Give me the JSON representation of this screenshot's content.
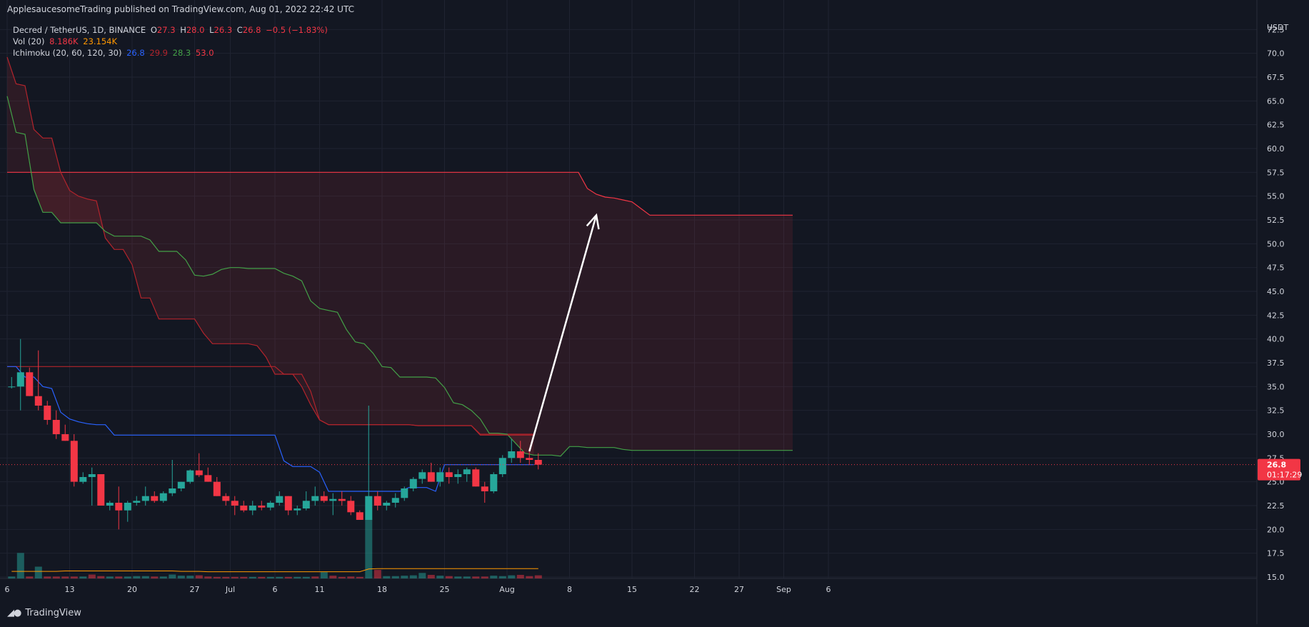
{
  "header": {
    "published": "ApplesaucesomeTrading published on TradingView.com, Aug 01, 2022 22:42 UTC"
  },
  "legend": {
    "symbol": "Decred / TetherUS, 1D, BINANCE",
    "o_label": "O",
    "o_value": "27.3",
    "h_label": "H",
    "h_value": "28.0",
    "l_label": "L",
    "l_value": "26.3",
    "c_label": "C",
    "c_value": "26.8",
    "change": "−0.5 (−1.83%)",
    "vol_label": "Vol (20)",
    "vol_value": "8.186K",
    "vol_ma": "23.154K",
    "ichimoku_label": "Ichimoku (20, 60, 120, 30)",
    "ichi_conv": "26.8",
    "ichi_base": "29.9",
    "ichi_spanA": "28.3",
    "ichi_spanB": "53.0"
  },
  "price_tag": {
    "value": "26.8",
    "countdown": "01:17:29"
  },
  "footer": {
    "brand": "TradingView"
  },
  "colors": {
    "background": "#131722",
    "grid": "#1f2331",
    "up": "#26a69a",
    "down": "#f23645",
    "conversion": "#2962ff",
    "base": "#b2242c",
    "spanA": "#43a047",
    "spanB": "#f23645",
    "cloud_bear": "#f23645",
    "text": "#d1d4dc",
    "arrow": "#ffffff"
  },
  "chart_data": {
    "type": "candlestick",
    "title": "Decred / TetherUS, 1D, BINANCE",
    "y_axis_unit": "USDT",
    "ylim": [
      15,
      75
    ],
    "y_ticks": [
      "72.5",
      "70.0",
      "67.5",
      "65.0",
      "62.5",
      "60.0",
      "57.5",
      "55.0",
      "52.5",
      "50.0",
      "47.5",
      "45.0",
      "42.5",
      "40.0",
      "37.5",
      "35.0",
      "32.5",
      "30.0",
      "27.5",
      "25.0",
      "22.5",
      "20.0",
      "17.5",
      "15.0"
    ],
    "x_ticks": [
      {
        "label": "6",
        "day": 0
      },
      {
        "label": "13",
        "day": 7
      },
      {
        "label": "20",
        "day": 14
      },
      {
        "label": "27",
        "day": 21
      },
      {
        "label": "Jul",
        "day": 25
      },
      {
        "label": "6",
        "day": 30
      },
      {
        "label": "11",
        "day": 35
      },
      {
        "label": "18",
        "day": 42
      },
      {
        "label": "25",
        "day": 49
      },
      {
        "label": "Aug",
        "day": 56
      },
      {
        "label": "8",
        "day": 63
      },
      {
        "label": "15",
        "day": 70
      },
      {
        "label": "22",
        "day": 77
      },
      {
        "label": "27",
        "day": 82
      },
      {
        "label": "Sep",
        "day": 87
      },
      {
        "label": "6",
        "day": 92
      }
    ],
    "x_start": "2022-06-06",
    "grid": true,
    "candles": [
      {
        "o": 35.0,
        "h": 36.0,
        "l": 34.8,
        "c": 35.0
      },
      {
        "o": 35.0,
        "h": 40.0,
        "l": 32.5,
        "c": 36.5
      },
      {
        "o": 36.5,
        "h": 37.0,
        "l": 34.0,
        "c": 34.0
      },
      {
        "o": 34.0,
        "h": 38.8,
        "l": 32.5,
        "c": 33.0
      },
      {
        "o": 33.0,
        "h": 33.5,
        "l": 31.0,
        "c": 31.5
      },
      {
        "o": 31.5,
        "h": 32.5,
        "l": 29.5,
        "c": 30.0
      },
      {
        "o": 30.0,
        "h": 31.0,
        "l": 29.3,
        "c": 29.3
      },
      {
        "o": 29.3,
        "h": 30.0,
        "l": 24.5,
        "c": 25.0
      },
      {
        "o": 25.0,
        "h": 26.0,
        "l": 24.8,
        "c": 25.5
      },
      {
        "o": 25.5,
        "h": 26.5,
        "l": 22.5,
        "c": 25.8
      },
      {
        "o": 25.8,
        "h": 25.8,
        "l": 22.5,
        "c": 22.5
      },
      {
        "o": 22.5,
        "h": 23.0,
        "l": 22.0,
        "c": 22.8
      },
      {
        "o": 22.8,
        "h": 24.5,
        "l": 20.0,
        "c": 22.0
      },
      {
        "o": 22.0,
        "h": 23.0,
        "l": 20.8,
        "c": 22.8
      },
      {
        "o": 22.8,
        "h": 23.5,
        "l": 22.5,
        "c": 23.0
      },
      {
        "o": 23.0,
        "h": 24.5,
        "l": 22.5,
        "c": 23.5
      },
      {
        "o": 23.5,
        "h": 24.0,
        "l": 22.8,
        "c": 23.0
      },
      {
        "o": 23.0,
        "h": 24.0,
        "l": 22.8,
        "c": 23.8
      },
      {
        "o": 23.8,
        "h": 27.3,
        "l": 23.5,
        "c": 24.3
      },
      {
        "o": 24.3,
        "h": 25.0,
        "l": 24.0,
        "c": 25.0
      },
      {
        "o": 25.0,
        "h": 26.3,
        "l": 24.8,
        "c": 26.2
      },
      {
        "o": 26.2,
        "h": 28.0,
        "l": 25.5,
        "c": 25.7
      },
      {
        "o": 25.7,
        "h": 26.5,
        "l": 25.0,
        "c": 25.0
      },
      {
        "o": 25.0,
        "h": 25.5,
        "l": 23.5,
        "c": 23.5
      },
      {
        "o": 23.5,
        "h": 23.8,
        "l": 22.5,
        "c": 23.0
      },
      {
        "o": 23.0,
        "h": 23.5,
        "l": 21.5,
        "c": 22.5
      },
      {
        "o": 22.5,
        "h": 23.0,
        "l": 21.8,
        "c": 22.0
      },
      {
        "o": 22.0,
        "h": 23.0,
        "l": 21.5,
        "c": 22.5
      },
      {
        "o": 22.5,
        "h": 23.0,
        "l": 22.0,
        "c": 22.3
      },
      {
        "o": 22.3,
        "h": 23.0,
        "l": 22.0,
        "c": 22.8
      },
      {
        "o": 22.8,
        "h": 24.0,
        "l": 22.5,
        "c": 23.5
      },
      {
        "o": 23.5,
        "h": 23.5,
        "l": 21.5,
        "c": 22.0
      },
      {
        "o": 22.0,
        "h": 22.5,
        "l": 21.5,
        "c": 22.2
      },
      {
        "o": 22.2,
        "h": 24.0,
        "l": 22.0,
        "c": 23.0
      },
      {
        "o": 23.0,
        "h": 24.5,
        "l": 22.5,
        "c": 23.5
      },
      {
        "o": 23.5,
        "h": 24.0,
        "l": 22.8,
        "c": 23.0
      },
      {
        "o": 23.0,
        "h": 23.8,
        "l": 21.5,
        "c": 23.2
      },
      {
        "o": 23.2,
        "h": 24.0,
        "l": 22.5,
        "c": 23.0
      },
      {
        "o": 23.0,
        "h": 23.5,
        "l": 21.5,
        "c": 21.8
      },
      {
        "o": 21.8,
        "h": 22.0,
        "l": 21.0,
        "c": 21.0
      },
      {
        "o": 21.0,
        "h": 33.0,
        "l": 21.0,
        "c": 23.5
      },
      {
        "o": 23.5,
        "h": 24.0,
        "l": 22.0,
        "c": 22.5
      },
      {
        "o": 22.5,
        "h": 23.0,
        "l": 22.0,
        "c": 22.8
      },
      {
        "o": 22.8,
        "h": 23.8,
        "l": 22.3,
        "c": 23.3
      },
      {
        "o": 23.3,
        "h": 24.5,
        "l": 23.0,
        "c": 24.3
      },
      {
        "o": 24.3,
        "h": 25.5,
        "l": 24.0,
        "c": 25.3
      },
      {
        "o": 25.3,
        "h": 26.3,
        "l": 24.8,
        "c": 26.0
      },
      {
        "o": 26.0,
        "h": 27.0,
        "l": 25.0,
        "c": 25.0
      },
      {
        "o": 25.0,
        "h": 26.5,
        "l": 24.5,
        "c": 26.0
      },
      {
        "o": 26.0,
        "h": 26.5,
        "l": 24.8,
        "c": 25.5
      },
      {
        "o": 25.5,
        "h": 26.3,
        "l": 24.8,
        "c": 25.8
      },
      {
        "o": 25.8,
        "h": 26.5,
        "l": 25.0,
        "c": 26.3
      },
      {
        "o": 26.3,
        "h": 26.5,
        "l": 24.5,
        "c": 24.5
      },
      {
        "o": 24.5,
        "h": 25.0,
        "l": 22.8,
        "c": 24.0
      },
      {
        "o": 24.0,
        "h": 26.0,
        "l": 23.8,
        "c": 25.8
      },
      {
        "o": 25.8,
        "h": 27.8,
        "l": 25.5,
        "c": 27.5
      },
      {
        "o": 27.5,
        "h": 29.5,
        "l": 27.0,
        "c": 28.2
      },
      {
        "o": 28.2,
        "h": 29.3,
        "l": 27.0,
        "c": 27.5
      },
      {
        "o": 27.5,
        "h": 28.5,
        "l": 26.8,
        "c": 27.3
      },
      {
        "o": 27.3,
        "h": 28.0,
        "l": 26.3,
        "c": 26.8
      }
    ],
    "volume": {
      "max_k": 200,
      "values_k": [
        5,
        65,
        5,
        30,
        5,
        5,
        5,
        5,
        5,
        10,
        6,
        5,
        5,
        5,
        6,
        6,
        5,
        5,
        10,
        7,
        7,
        8,
        5,
        4,
        4,
        4,
        4,
        4,
        4,
        4,
        4,
        4,
        4,
        4,
        5,
        16,
        7,
        4,
        5,
        4,
        150,
        22,
        6,
        6,
        7,
        8,
        14,
        9,
        7,
        6,
        5,
        5,
        5,
        5,
        7,
        6,
        8,
        9,
        6,
        8
      ],
      "up": [
        true,
        true,
        false,
        true,
        false,
        false,
        false,
        false,
        true,
        false,
        false,
        true,
        false,
        true,
        true,
        true,
        false,
        true,
        true,
        true,
        true,
        false,
        false,
        false,
        false,
        false,
        false,
        true,
        false,
        true,
        true,
        false,
        true,
        true,
        false,
        true,
        false,
        false,
        false,
        false,
        true,
        false,
        true,
        true,
        true,
        true,
        true,
        false,
        true,
        false,
        true,
        true,
        false,
        false,
        true,
        true,
        true,
        false,
        false,
        false
      ],
      "ma_k": [
        18,
        18,
        18,
        18,
        18,
        18,
        19,
        19,
        19,
        19,
        19,
        19,
        19,
        19,
        19,
        19,
        19,
        19,
        19,
        18,
        18,
        18,
        17,
        17,
        17,
        17,
        17,
        17,
        17,
        17,
        17,
        17,
        17,
        17,
        17,
        17,
        17,
        17,
        17,
        17,
        24,
        25,
        25,
        25,
        25,
        25,
        25,
        25,
        25,
        25,
        25,
        25,
        25,
        25,
        25,
        25,
        25,
        25,
        25,
        25
      ]
    },
    "series": [
      {
        "name": "Conversion",
        "day_start": 0,
        "values": [
          37.1,
          37.1,
          36.0,
          36.0,
          35.0,
          34.8,
          32.3,
          31.6,
          31.3,
          31.1,
          31.0,
          31.0,
          29.9,
          29.9,
          29.9,
          29.9,
          29.9,
          29.9,
          29.9,
          29.9,
          29.9,
          29.9,
          29.9,
          29.9,
          29.9,
          29.9,
          29.9,
          29.9,
          29.9,
          29.9,
          29.9,
          27.2,
          26.6,
          26.6,
          26.6,
          26.0,
          24.0,
          24.0,
          24.0,
          24.0,
          24.0,
          24.0,
          24.0,
          24.0,
          24.0,
          24.4,
          24.4,
          24.4,
          24.0,
          26.8,
          26.8,
          26.8,
          26.8,
          26.8,
          26.8,
          26.8,
          26.8,
          26.8,
          26.8,
          26.8
        ]
      },
      {
        "name": "Base",
        "day_start": 0,
        "values": [
          37.1,
          37.1,
          37.1,
          37.1,
          37.1,
          37.1,
          37.1,
          37.1,
          37.1,
          37.1,
          37.1,
          37.1,
          37.1,
          37.1,
          37.1,
          37.1,
          37.1,
          37.1,
          37.1,
          37.1,
          37.1,
          37.1,
          37.1,
          37.1,
          37.1,
          37.1,
          37.1,
          37.1,
          37.1,
          37.1,
          37.1,
          36.3,
          36.3,
          36.3,
          34.5,
          31.5,
          31.0,
          31.0,
          31.0,
          31.0,
          31.0,
          31.0,
          31.0,
          31.0,
          31.0,
          31.0,
          30.9,
          30.9,
          30.9,
          30.9,
          30.9,
          30.9,
          30.9,
          29.9,
          29.9,
          29.9,
          29.9,
          29.9,
          29.9,
          29.9
        ]
      },
      {
        "name": "SpanA",
        "day_start": 0,
        "values": [
          65.5,
          61.7,
          61.5,
          55.7,
          53.3,
          53.3,
          52.2,
          52.2,
          52.2,
          52.2,
          52.2,
          51.3,
          50.8,
          50.8,
          50.8,
          50.8,
          50.4,
          49.2,
          49.2,
          49.2,
          48.3,
          46.7,
          46.6,
          46.8,
          47.3,
          47.5,
          47.5,
          47.4,
          47.4,
          47.4,
          47.4,
          46.9,
          46.6,
          46.1,
          44.0,
          43.2,
          43.0,
          42.8,
          41.0,
          39.7,
          39.5,
          38.5,
          37.1,
          37.0,
          36.0,
          36.0,
          36.0,
          36.0,
          35.9,
          34.9,
          33.3,
          33.1,
          32.5,
          31.6,
          30.1,
          30.1,
          30.0,
          29.0,
          28.0,
          27.8,
          27.8,
          27.8,
          27.7,
          28.7,
          28.7,
          28.6,
          28.6,
          28.6,
          28.6,
          28.4,
          28.3,
          28.3,
          28.3,
          28.3,
          28.3,
          28.3,
          28.3,
          28.3,
          28.3,
          28.3,
          28.3,
          28.3,
          28.3,
          28.3,
          28.3,
          28.3,
          28.3,
          28.3,
          28.3
        ]
      },
      {
        "name": "SpanB",
        "day_start": 0,
        "values": [
          69.6,
          66.8,
          66.6,
          62.0,
          61.1,
          61.1,
          57.5,
          55.6,
          55.0,
          54.7,
          54.5,
          50.6,
          49.4,
          49.4,
          47.8,
          44.3,
          44.3,
          42.1,
          42.1,
          42.1,
          42.1,
          42.1,
          40.6,
          39.5,
          39.5,
          39.5,
          39.5,
          39.5,
          39.3,
          38.1,
          36.3,
          36.3,
          36.3,
          35.0,
          33.1,
          31.5,
          31.0,
          31.0,
          31.0,
          31.0,
          31.0,
          31.0,
          31.0,
          31.0,
          31.0,
          31.0,
          30.9,
          30.9,
          30.9,
          30.9,
          30.9,
          30.9,
          30.9,
          30.0,
          30.0,
          30.0,
          30.0,
          30.0,
          30.0,
          30.0
        ]
      },
      {
        "name": "SpanB_fwd",
        "day_start": 0,
        "values": [
          57.5,
          57.5,
          57.5,
          57.5,
          57.5,
          57.5,
          57.5,
          57.5,
          57.5,
          57.5,
          57.5,
          57.5,
          57.5,
          57.5,
          57.5,
          57.5,
          57.5,
          57.5,
          57.5,
          57.5,
          57.5,
          57.5,
          57.5,
          57.5,
          57.5,
          57.5,
          57.5,
          57.5,
          57.5,
          57.5,
          57.5,
          57.5,
          57.5,
          57.5,
          57.5,
          57.5,
          57.5,
          57.5,
          57.5,
          57.5,
          57.5,
          57.5,
          57.5,
          57.5,
          57.5,
          57.5,
          57.5,
          57.5,
          57.5,
          57.5,
          57.5,
          57.5,
          57.5,
          57.5,
          57.5,
          57.5,
          57.5,
          57.5,
          57.5,
          57.5,
          57.5,
          57.5,
          57.5,
          57.5,
          57.5,
          55.8,
          55.2,
          54.9,
          54.8,
          54.6,
          54.4,
          53.7,
          53.0,
          53.0,
          53.0,
          53.0,
          53.0,
          53.0,
          53.0,
          53.0,
          53.0,
          53.0,
          53.0,
          53.0,
          53.0,
          53.0,
          53.0,
          53.0,
          53.0
        ]
      }
    ],
    "current_price": 26.8,
    "annotations": [
      {
        "type": "arrow",
        "from": {
          "day": 58.5,
          "price": 28.2
        },
        "to": {
          "day": 66,
          "price": 53.0
        }
      }
    ]
  }
}
